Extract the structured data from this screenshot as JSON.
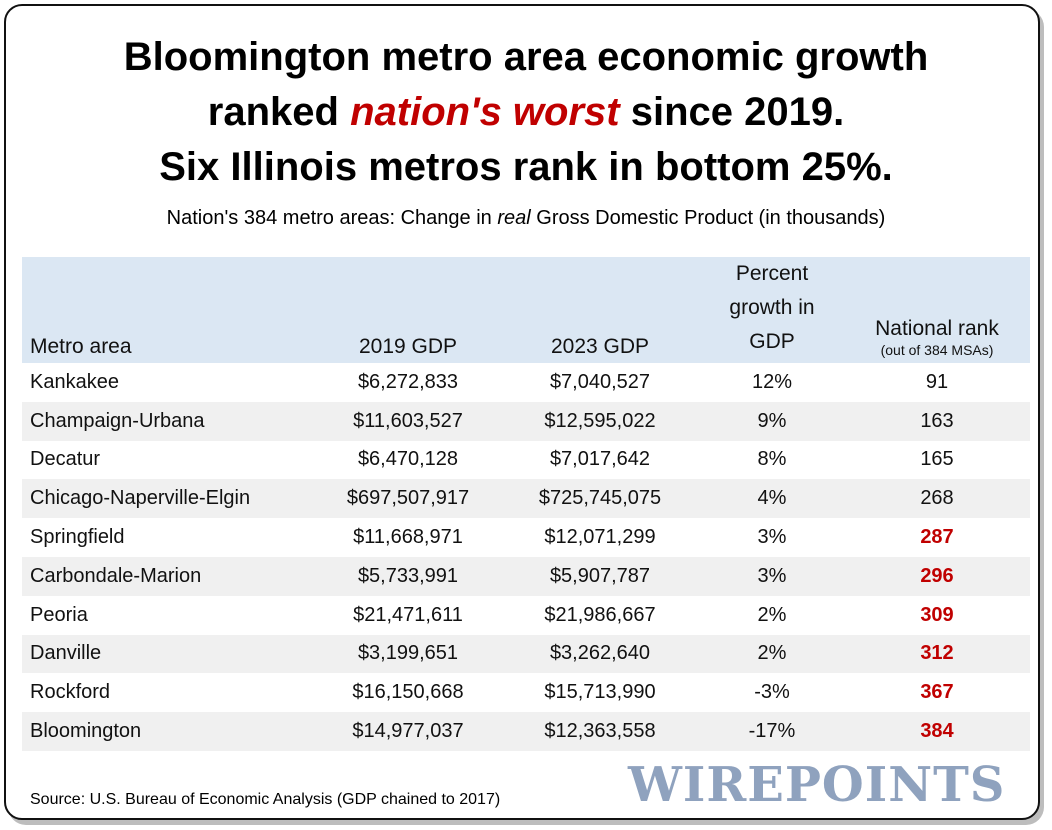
{
  "title": {
    "line1": "Bloomington metro area economic growth",
    "line2_prefix": "ranked ",
    "line2_accent": "nation's worst",
    "line2_suffix": " since 2019.",
    "line3": "Six Illinois metros rank in bottom 25%."
  },
  "subtitle": {
    "prefix": "Nation's 384 metro areas: Change in ",
    "emphasis": "real",
    "suffix": " Gross Domestic Product (in thousands)"
  },
  "colors": {
    "accent": "#c00000",
    "header_bg": "#dbe7f3",
    "stripe": "#f0f0f0",
    "logo": "#8fa2be"
  },
  "chart_data": {
    "type": "table",
    "title": "Bloomington metro area economic growth ranked nation's worst since 2019. Six Illinois metros rank in bottom 25%.",
    "columns": {
      "metro": "Metro area",
      "gdp2019": "2019 GDP",
      "gdp2023": "2023 GDP",
      "pct_line1": "Percent",
      "pct_line2": "growth in",
      "pct_line3": "GDP",
      "rank": "National rank",
      "rank_sub": "(out of 384 MSAs)"
    },
    "rows": [
      {
        "metro": "Kankakee",
        "gdp2019": "$6,272,833",
        "gdp2023": "$7,040,527",
        "pct": "12%",
        "rank": "91",
        "bottom25": false
      },
      {
        "metro": "Champaign-Urbana",
        "gdp2019": "$11,603,527",
        "gdp2023": "$12,595,022",
        "pct": "9%",
        "rank": "163",
        "bottom25": false
      },
      {
        "metro": "Decatur",
        "gdp2019": "$6,470,128",
        "gdp2023": "$7,017,642",
        "pct": "8%",
        "rank": "165",
        "bottom25": false
      },
      {
        "metro": "Chicago-Naperville-Elgin",
        "gdp2019": "$697,507,917",
        "gdp2023": "$725,745,075",
        "pct": "4%",
        "rank": "268",
        "bottom25": false
      },
      {
        "metro": "Springfield",
        "gdp2019": "$11,668,971",
        "gdp2023": "$12,071,299",
        "pct": "3%",
        "rank": "287",
        "bottom25": true
      },
      {
        "metro": "Carbondale-Marion",
        "gdp2019": "$5,733,991",
        "gdp2023": "$5,907,787",
        "pct": "3%",
        "rank": "296",
        "bottom25": true
      },
      {
        "metro": "Peoria",
        "gdp2019": "$21,471,611",
        "gdp2023": "$21,986,667",
        "pct": "2%",
        "rank": "309",
        "bottom25": true
      },
      {
        "metro": "Danville",
        "gdp2019": "$3,199,651",
        "gdp2023": "$3,262,640",
        "pct": "2%",
        "rank": "312",
        "bottom25": true
      },
      {
        "metro": "Rockford",
        "gdp2019": "$16,150,668",
        "gdp2023": "$15,713,990",
        "pct": "-3%",
        "rank": "367",
        "bottom25": true
      },
      {
        "metro": "Bloomington",
        "gdp2019": "$14,977,037",
        "gdp2023": "$12,363,558",
        "pct": "-17%",
        "rank": "384",
        "bottom25": true
      }
    ]
  },
  "source": "Source: U.S. Bureau of Economic Analysis (GDP chained to 2017)",
  "logo_text": "WIREPOINTS"
}
